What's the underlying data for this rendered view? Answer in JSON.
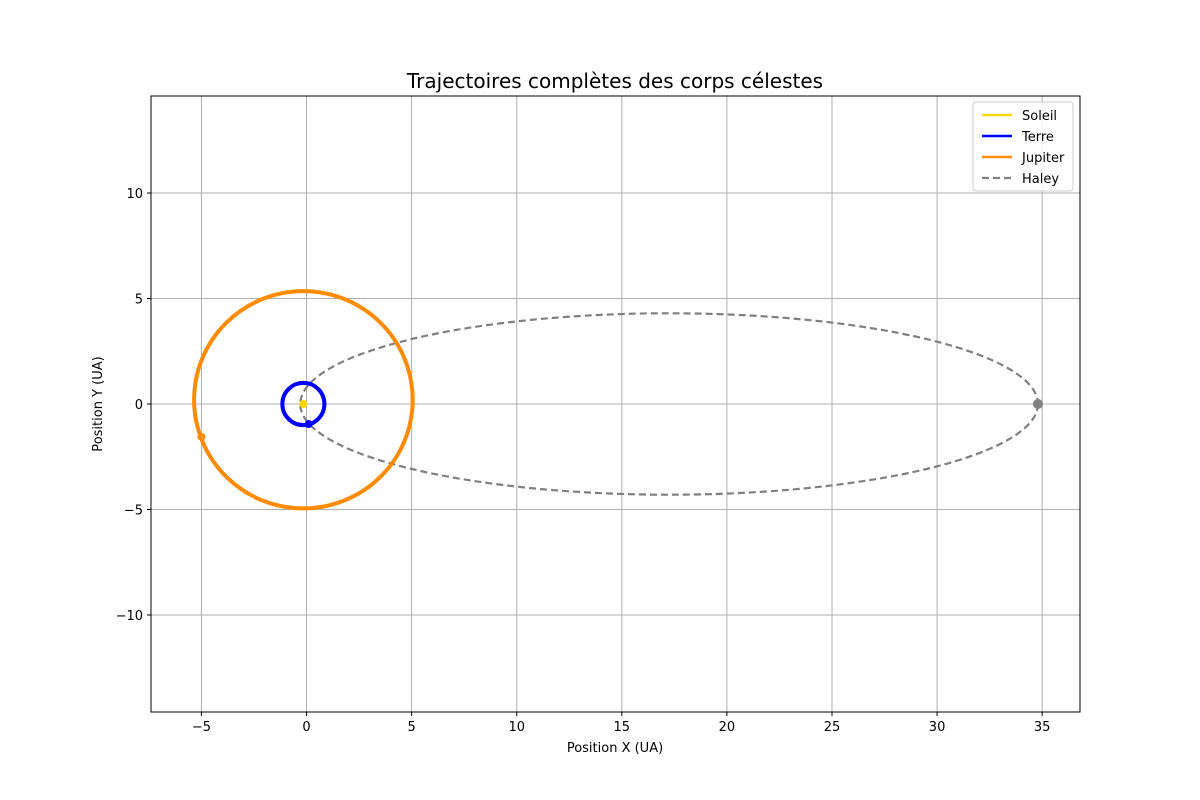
{
  "chart_data": {
    "type": "line",
    "title": "Trajectoires complètes des corps célestes",
    "xlabel": "Position X (UA)",
    "ylabel": "Position Y (UA)",
    "xlim": [
      -7.4,
      36.8
    ],
    "ylim": [
      -14.6,
      14.6
    ],
    "xticks": [
      -5,
      0,
      5,
      10,
      15,
      20,
      25,
      30,
      35
    ],
    "yticks": [
      -10,
      -5,
      0,
      5,
      10
    ],
    "xtick_labels": [
      "−5",
      "0",
      "5",
      "10",
      "15",
      "20",
      "25",
      "30",
      "35"
    ],
    "ytick_labels": [
      "−10",
      "−5",
      "0",
      "5",
      "10"
    ],
    "grid": true,
    "legend_position": "top-right",
    "series": [
      {
        "name": "Soleil",
        "color": "#FFD700",
        "style": "solid",
        "orbit": {
          "center": [
            -0.15,
            0.0
          ],
          "rx": 0.0,
          "ry": 0.0
        },
        "marker": [
          -0.15,
          0.0
        ]
      },
      {
        "name": "Terre",
        "color": "#0000FF",
        "style": "solid",
        "orbit": {
          "center": [
            -0.15,
            0.0
          ],
          "rx": 1.0,
          "ry": 1.0
        },
        "marker": [
          0.1,
          -0.95
        ]
      },
      {
        "name": "Jupiter",
        "color": "#FF8C00",
        "style": "solid",
        "orbit": {
          "center": [
            -0.15,
            0.2
          ],
          "rx": 5.2,
          "ry": 5.15
        },
        "marker": [
          -5.0,
          -1.55
        ]
      },
      {
        "name": "Haley",
        "color": "#808080",
        "style": "dashed",
        "orbit": {
          "center": [
            17.25,
            0.0
          ],
          "rx": 17.55,
          "ry": 4.3
        },
        "marker": [
          34.8,
          0.0
        ]
      }
    ]
  }
}
